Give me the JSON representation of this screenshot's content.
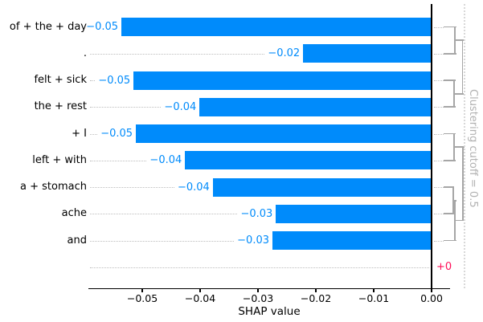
{
  "chart_data": {
    "type": "bar",
    "orientation": "horizontal",
    "title": "",
    "xlabel": "SHAP value",
    "ylabel": "",
    "xlim": [
      -0.0593,
      0.0032
    ],
    "grid": false,
    "x_ticks": [
      {
        "value": -0.05,
        "label": "−0.05"
      },
      {
        "value": -0.04,
        "label": "−0.04"
      },
      {
        "value": -0.03,
        "label": "−0.03"
      },
      {
        "value": -0.02,
        "label": "−0.02"
      },
      {
        "value": -0.01,
        "label": "−0.01"
      },
      {
        "value": 0.0,
        "label": "0.00"
      }
    ],
    "categories": [
      "of + the + day",
      ".",
      "felt + sick",
      "the + rest",
      "+ I",
      "left + with",
      "a + stomach",
      "ache",
      "and",
      ""
    ],
    "values": [
      -0.0536,
      -0.0222,
      -0.0515,
      -0.0401,
      -0.0511,
      -0.0426,
      -0.0378,
      -0.0269,
      -0.0275,
      0.0
    ],
    "rows": [
      {
        "label": "of + the + day",
        "value": -0.0536,
        "value_label": "−0.05",
        "positive": false
      },
      {
        "label": ".",
        "value": -0.0222,
        "value_label": "−0.02",
        "positive": false
      },
      {
        "label": "felt + sick",
        "value": -0.0515,
        "value_label": "−0.05",
        "positive": false
      },
      {
        "label": "the + rest",
        "value": -0.0401,
        "value_label": "−0.04",
        "positive": false
      },
      {
        "label": "+ I",
        "value": -0.0511,
        "value_label": "−0.05",
        "positive": false
      },
      {
        "label": "left + with",
        "value": -0.0426,
        "value_label": "−0.04",
        "positive": false
      },
      {
        "label": "a + stomach",
        "value": -0.0378,
        "value_label": "−0.04",
        "positive": false
      },
      {
        "label": "ache",
        "value": -0.0269,
        "value_label": "−0.03",
        "positive": false
      },
      {
        "label": "and",
        "value": -0.0275,
        "value_label": "−0.03",
        "positive": false
      },
      {
        "label": "",
        "value": 0.0,
        "value_label": "+0",
        "positive": true
      }
    ],
    "colors": {
      "bar_negative": "#008bfb",
      "value_negative": "#008bfb",
      "value_positive": "#ff0d57",
      "dendrogram": "#a6a6a6",
      "leader_dots": "#bdbdbd",
      "cutoff_line": "#d8d8d8",
      "cutoff_text": "#b2b2b2",
      "axis": "#000000"
    },
    "dendrogram": {
      "cutoff": 0.5,
      "cutoff_label": "Clustering cutoff = 0.5",
      "merges": [
        {
          "id": "m1",
          "a": {
            "leaf": 0
          },
          "b": {
            "leaf": 1
          },
          "frac": 0.7
        },
        {
          "id": "m2",
          "a": {
            "leaf": 2
          },
          "b": {
            "leaf": 3
          },
          "frac": 0.69
        },
        {
          "id": "m3",
          "a": {
            "leaf": 4
          },
          "b": {
            "leaf": 5
          },
          "frac": 0.68
        },
        {
          "id": "m4",
          "a": {
            "leaf": 6
          },
          "b": {
            "leaf": 7
          },
          "frac": 0.65
        },
        {
          "id": "m5",
          "a": {
            "merge": "m4"
          },
          "b": {
            "leaf": 8
          },
          "frac": 0.71
        },
        {
          "id": "m6",
          "a": {
            "merge": "m1"
          },
          "b": {
            "merge": "m2"
          },
          "frac": 0.94
        },
        {
          "id": "m7",
          "a": {
            "merge": "m3"
          },
          "b": {
            "merge": "m5"
          },
          "frac": 0.95
        }
      ]
    }
  }
}
